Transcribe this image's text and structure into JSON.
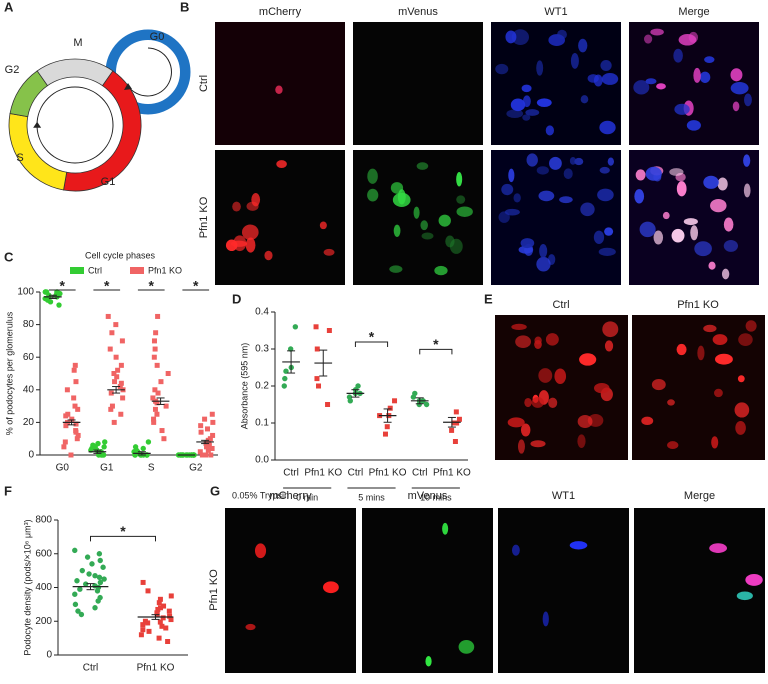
{
  "panel_labels": [
    "A",
    "B",
    "C",
    "D",
    "E",
    "F",
    "G"
  ],
  "cell_cycle": {
    "phases": [
      "M",
      "G0",
      "G2",
      "S",
      "G1"
    ]
  },
  "images_B": {
    "columns": [
      "mCherry",
      "mVenus",
      "WT1",
      "Merge"
    ],
    "rows": [
      "Ctrl",
      "Pfn1 KO"
    ]
  },
  "images_E": {
    "columns": [
      "Ctrl",
      "Pfn1 KO"
    ]
  },
  "images_G": {
    "columns": [
      "mCherry",
      "mVenus",
      "WT1",
      "Merge"
    ],
    "rows": [
      "Pfn1 KO"
    ]
  },
  "chart_data": [
    {
      "type": "dot",
      "legend_title": "Cell cycle phases",
      "ylabel": "% of podocytes per glomerulus",
      "categories": [
        "G0",
        "G1",
        "S",
        "G2"
      ],
      "ylim": [
        0,
        100
      ],
      "yticks": [
        0,
        20,
        40,
        60,
        80,
        100
      ],
      "significance": [
        "*",
        "*",
        "*",
        "*"
      ],
      "series": [
        {
          "name": "Ctrl",
          "color": "#33cc33",
          "marker": "circle",
          "points": [
            [
              100,
              100,
              99,
              98,
              97,
              100,
              96,
              95,
              100,
              99,
              98,
              94,
              92,
              100,
              97
            ],
            [
              0,
              2,
              5,
              8,
              3,
              0,
              1,
              6,
              4,
              0,
              7,
              2,
              0,
              3,
              5
            ],
            [
              0,
              0,
              2,
              4,
              0,
              8,
              0,
              1,
              0,
              3,
              0,
              5,
              0,
              0,
              2
            ],
            [
              0,
              0,
              0,
              0,
              0,
              0,
              0,
              0,
              0,
              0,
              0,
              0,
              0,
              0,
              0
            ]
          ],
          "means": [
            97,
            2,
            1,
            0
          ],
          "sem": [
            1,
            1,
            1,
            0
          ]
        },
        {
          "name": "Pfn1 KO",
          "color": "#f06464",
          "marker": "square",
          "points": [
            [
              0,
              5,
              10,
              12,
              15,
              18,
              20,
              22,
              25,
              28,
              30,
              35,
              40,
              45,
              52,
              55,
              8,
              14,
              19,
              24
            ],
            [
              20,
              25,
              30,
              35,
              38,
              40,
              42,
              45,
              48,
              50,
              55,
              60,
              65,
              70,
              75,
              80,
              85,
              28,
              44,
              52
            ],
            [
              10,
              15,
              20,
              25,
              28,
              30,
              32,
              35,
              38,
              40,
              45,
              50,
              55,
              60,
              65,
              70,
              75,
              85,
              22,
              33
            ],
            [
              0,
              0,
              0,
              2,
              4,
              5,
              6,
              8,
              10,
              12,
              14,
              16,
              18,
              20,
              22,
              25,
              0,
              3,
              7,
              9
            ]
          ],
          "means": [
            20,
            40,
            33,
            8
          ],
          "sem": [
            1.5,
            2,
            2,
            1
          ]
        }
      ]
    },
    {
      "type": "dot",
      "ylabel": "Absorbance (595 nm)",
      "categories": [
        "Ctrl",
        "Pfn1 KO",
        "Ctrl",
        "Pfn1 KO",
        "Ctrl",
        "Pfn1 KO"
      ],
      "group_title": "0.05% Trypsin",
      "group_labels": [
        "0 min",
        "5 mins",
        "10 mins"
      ],
      "ylim": [
        0,
        0.4
      ],
      "yticks": [
        {
          "value": 0,
          "label": "0.0"
        },
        0.1,
        0.2,
        0.3,
        0.4
      ],
      "colors": [
        "#33aa55",
        "#e8403a",
        "#33aa55",
        "#e8403a",
        "#33aa55",
        "#e8403a"
      ],
      "markers": [
        "circle",
        "square",
        "circle",
        "square",
        "circle",
        "square"
      ],
      "points": [
        [
          0.36,
          0.3,
          0.25,
          0.2,
          0.22,
          0.24
        ],
        [
          0.36,
          0.35,
          0.3,
          0.22,
          0.2,
          0.15
        ],
        [
          0.2,
          0.18,
          0.19,
          0.17,
          0.16,
          0.18
        ],
        [
          0.16,
          0.14,
          0.12,
          0.09,
          0.07,
          0.12
        ],
        [
          0.18,
          0.16,
          0.15,
          0.16,
          0.17,
          0.15
        ],
        [
          0.13,
          0.11,
          0.1,
          0.08,
          0.05,
          0.1
        ]
      ],
      "means": [
        0.265,
        0.262,
        0.18,
        0.12,
        0.16,
        0.102
      ],
      "sem": [
        0.03,
        0.035,
        0.01,
        0.018,
        0.008,
        0.013
      ],
      "brackets": [
        {
          "from": 2,
          "to": 3,
          "label": "*"
        },
        {
          "from": 4,
          "to": 5,
          "label": "*"
        }
      ]
    },
    {
      "type": "dot",
      "ylabel": "Podocyte density (pods/×10⁶ μm³)",
      "categories": [
        "Ctrl",
        "Pfn1 KO"
      ],
      "ylim": [
        0,
        800
      ],
      "yticks": [
        0,
        200,
        400,
        600,
        800
      ],
      "colors": [
        "#33aa55",
        "#e8403a"
      ],
      "markers": [
        "circle",
        "square"
      ],
      "points": [
        [
          620,
          600,
          580,
          560,
          540,
          520,
          500,
          480,
          470,
          460,
          450,
          440,
          430,
          420,
          410,
          400,
          390,
          380,
          360,
          340,
          320,
          300,
          280,
          260,
          240
        ],
        [
          430,
          380,
          350,
          330,
          310,
          290,
          280,
          270,
          260,
          250,
          240,
          230,
          220,
          210,
          200,
          195,
          190,
          180,
          170,
          160,
          150,
          140,
          120,
          100,
          80
        ]
      ],
      "means": [
        405,
        225
      ],
      "sem": [
        18,
        14
      ],
      "brackets": [
        {
          "from": 0,
          "to": 1,
          "label": "*"
        }
      ]
    }
  ]
}
